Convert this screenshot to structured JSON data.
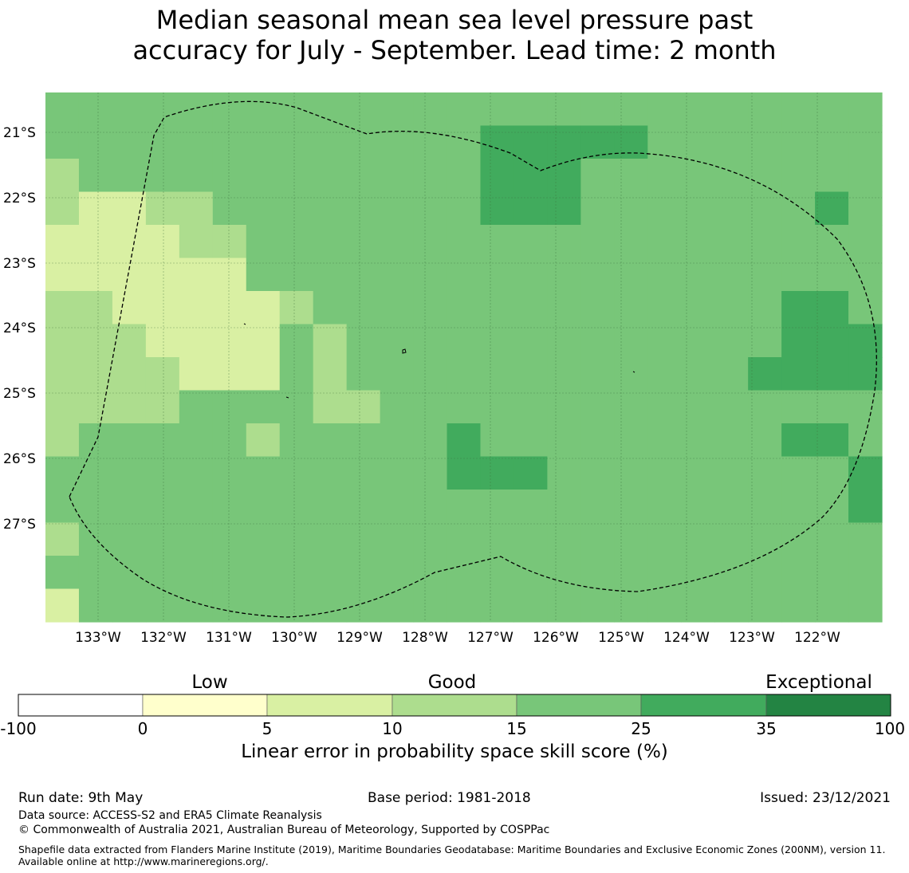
{
  "title_line1": "Median seasonal mean sea level pressure past",
  "title_line2": "accuracy for July - September. Lead time: 2 month",
  "map": {
    "lon_labels": [
      "133°W",
      "132°W",
      "131°W",
      "130°W",
      "129°W",
      "128°W",
      "127°W",
      "126°W",
      "125°W",
      "124°W",
      "123°W",
      "122°W"
    ],
    "lat_labels": [
      "21°S",
      "22°S",
      "23°S",
      "24°S",
      "25°S",
      "26°S",
      "27°S"
    ],
    "category_colors": {
      "0": "#ffffcc",
      "1": "#d9f0a3",
      "2": "#addd8e",
      "3": "#78c679",
      "4": "#41ab5d",
      "5": "#238443"
    },
    "cell_grid": [
      "3333333333333333333333333",
      "3333333333333444443333333",
      "2333333333333444333333333",
      "2112233333333444333333343",
      "1111223333333333333333333",
      "1111113333333333333333333",
      "2211111233333333333333443",
      "2221111323333333333333444",
      "2222111323333333333334444",
      "2222333322333333333333333",
      "2333332333334333333333443",
      "3333333333334443333333334",
      "3333333333333333333333334",
      "2333333333333333333333333",
      "3333333333333333333333333",
      "1333333333333333333333333"
    ]
  },
  "colorbar": {
    "labels": [
      "Low",
      "Good",
      "Exceptional"
    ],
    "ticks": [
      "-100",
      "0",
      "5",
      "10",
      "15",
      "25",
      "35",
      "100"
    ],
    "colors": [
      "#ffffff",
      "#ffffcc",
      "#d9f0a3",
      "#addd8e",
      "#78c679",
      "#41ab5d",
      "#238443"
    ],
    "title": "Linear error in probability space skill score (%)"
  },
  "footer": {
    "run_date": "Run date: 9th May",
    "base_period": "Base period: 1981-2018",
    "issued": "Issued: 23/12/2021",
    "data_source": "Data source: ACCESS-S2 and ERA5 Climate Reanalysis",
    "copyright": "© Commonwealth of Australia 2021, Australian Bureau of Meteorology, Supported by COSPPac",
    "shapefile": "Shapefile data extracted from Flanders Marine Institute (2019), Maritime Boundaries Geodatabase: Maritime Boundaries and Exclusive Economic Zones (200NM), version 11. Available online at http://www.marineregions.org/."
  }
}
